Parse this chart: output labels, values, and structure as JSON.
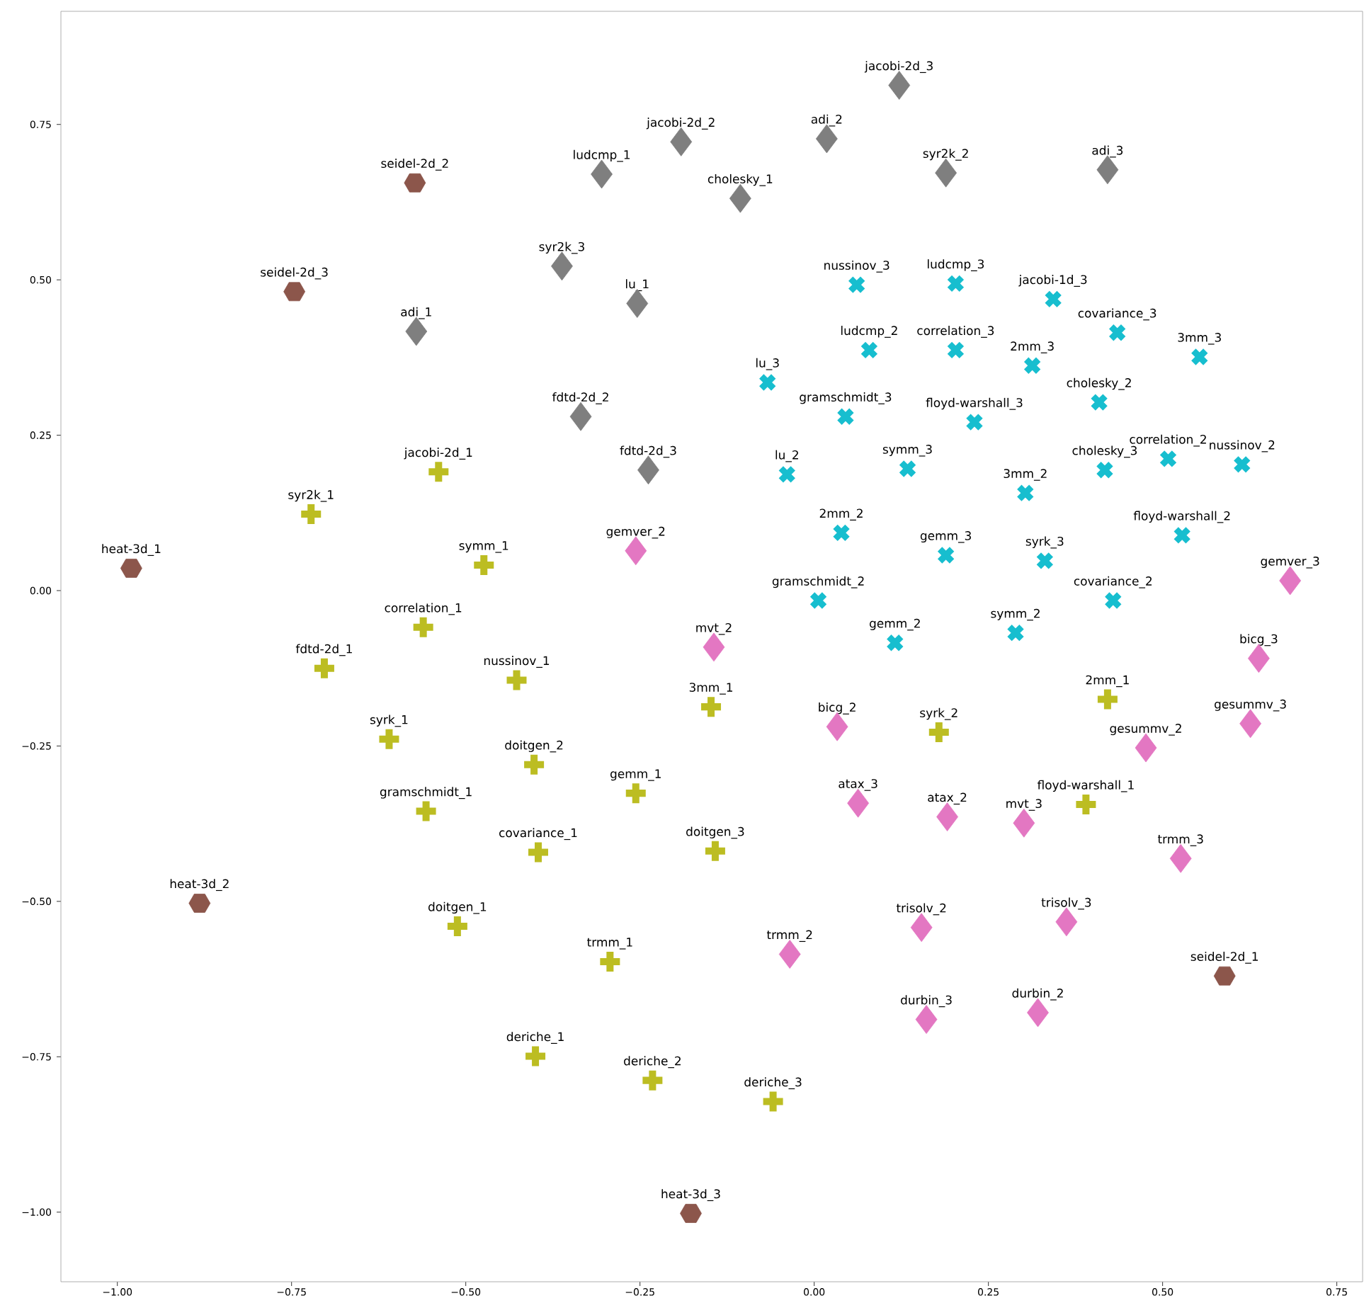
{
  "chart_data": {
    "type": "scatter",
    "xlim": [
      -1.081,
      0.787
    ],
    "ylim": [
      -1.112,
      0.932
    ],
    "xticks": [
      {
        "value": -1.0,
        "label": "−1.00"
      },
      {
        "value": -0.75,
        "label": "−0.75"
      },
      {
        "value": -0.5,
        "label": "−0.50"
      },
      {
        "value": -0.25,
        "label": "−0.25"
      },
      {
        "value": 0.0,
        "label": "0.00"
      },
      {
        "value": 0.25,
        "label": "0.25"
      },
      {
        "value": 0.5,
        "label": "0.50"
      },
      {
        "value": 0.75,
        "label": "0.75"
      }
    ],
    "yticks": [
      {
        "value": -1.0,
        "label": "−1.00"
      },
      {
        "value": -0.75,
        "label": "−0.75"
      },
      {
        "value": -0.5,
        "label": "−0.50"
      },
      {
        "value": -0.25,
        "label": "−0.25"
      },
      {
        "value": 0.0,
        "label": "0.00"
      },
      {
        "value": 0.25,
        "label": "0.25"
      },
      {
        "value": 0.5,
        "label": "0.50"
      },
      {
        "value": 0.75,
        "label": "0.75"
      }
    ],
    "series": [
      {
        "color": "#7f7f7f",
        "marker": "diamond",
        "x": [
          0.122,
          -0.191,
          0.018,
          -0.305,
          0.189,
          0.421,
          -0.106,
          -0.362,
          -0.254,
          -0.571,
          -0.335,
          -0.238
        ],
        "values": [
          0.813,
          0.722,
          0.727,
          0.67,
          0.672,
          0.677,
          0.631,
          0.522,
          0.462,
          0.417,
          0.28,
          0.194
        ]
      },
      {
        "color": "#17becf",
        "marker": "cross",
        "x": [
          0.061,
          0.203,
          0.343,
          0.435,
          0.079,
          0.203,
          0.313,
          0.553,
          -0.067,
          0.409,
          0.045,
          0.23,
          0.508,
          0.614,
          0.134,
          -0.039,
          0.417,
          0.303,
          0.528,
          0.039,
          0.189,
          0.331,
          0.429,
          0.006,
          0.116,
          0.289
        ],
        "values": [
          0.492,
          0.494,
          0.469,
          0.415,
          0.387,
          0.387,
          0.362,
          0.376,
          0.335,
          0.303,
          0.28,
          0.271,
          0.212,
          0.203,
          0.196,
          0.187,
          0.194,
          0.157,
          0.089,
          0.093,
          0.057,
          0.048,
          -0.016,
          -0.016,
          -0.084,
          -0.068
        ]
      },
      {
        "color": "#bcbd22",
        "marker": "plus",
        "x": [
          -0.539,
          -0.722,
          -0.474,
          -0.561,
          -0.703,
          -0.427,
          -0.148,
          -0.61,
          -0.402,
          -0.256,
          -0.557,
          -0.396,
          -0.142,
          -0.512,
          -0.293,
          -0.4,
          -0.232,
          -0.059,
          0.421,
          0.179,
          0.39
        ],
        "values": [
          0.191,
          0.123,
          0.041,
          -0.059,
          -0.125,
          -0.144,
          -0.187,
          -0.239,
          -0.28,
          -0.326,
          -0.355,
          -0.421,
          -0.419,
          -0.54,
          -0.597,
          -0.749,
          -0.788,
          -0.822,
          -0.175,
          -0.228,
          -0.344
        ]
      },
      {
        "color": "#e377c2",
        "marker": "diamond",
        "x": [
          -0.256,
          -0.144,
          0.683,
          0.638,
          0.033,
          0.626,
          0.476,
          0.063,
          0.191,
          0.301,
          0.526,
          0.154,
          0.362,
          -0.035,
          0.161,
          0.321
        ],
        "values": [
          0.064,
          -0.091,
          0.016,
          -0.109,
          -0.219,
          -0.214,
          -0.253,
          -0.342,
          -0.364,
          -0.374,
          -0.431,
          -0.542,
          -0.533,
          -0.585,
          -0.69,
          -0.679
        ]
      },
      {
        "color": "#8c564b",
        "x": [
          -0.573,
          -0.746,
          -0.98,
          -0.882,
          -0.177,
          0.589
        ],
        "values": [
          0.656,
          0.481,
          0.036,
          -0.503,
          -1.002,
          -0.62
        ]
      }
    ],
    "annotations": [
      {
        "text": "jacobi-2d_3",
        "x": 0.122,
        "y": 0.813
      },
      {
        "text": "jacobi-2d_2",
        "x": -0.191,
        "y": 0.722
      },
      {
        "text": "adi_2",
        "x": 0.018,
        "y": 0.727
      },
      {
        "text": "ludcmp_1",
        "x": -0.305,
        "y": 0.67
      },
      {
        "text": "syr2k_2",
        "x": 0.189,
        "y": 0.672
      },
      {
        "text": "adi_3",
        "x": 0.421,
        "y": 0.677
      },
      {
        "text": "cholesky_1",
        "x": -0.106,
        "y": 0.631
      },
      {
        "text": "syr2k_3",
        "x": -0.362,
        "y": 0.522
      },
      {
        "text": "lu_1",
        "x": -0.254,
        "y": 0.462
      },
      {
        "text": "adi_1",
        "x": -0.571,
        "y": 0.417
      },
      {
        "text": "fdtd-2d_2",
        "x": -0.335,
        "y": 0.28
      },
      {
        "text": "fdtd-2d_3",
        "x": -0.238,
        "y": 0.194
      },
      {
        "text": "nussinov_3",
        "x": 0.061,
        "y": 0.492
      },
      {
        "text": "ludcmp_3",
        "x": 0.203,
        "y": 0.494
      },
      {
        "text": "jacobi-1d_3",
        "x": 0.343,
        "y": 0.469
      },
      {
        "text": "covariance_3",
        "x": 0.435,
        "y": 0.415
      },
      {
        "text": "ludcmp_2",
        "x": 0.079,
        "y": 0.387
      },
      {
        "text": "correlation_3",
        "x": 0.203,
        "y": 0.387
      },
      {
        "text": "2mm_3",
        "x": 0.313,
        "y": 0.362
      },
      {
        "text": "3mm_3",
        "x": 0.553,
        "y": 0.376
      },
      {
        "text": "lu_3",
        "x": -0.067,
        "y": 0.335
      },
      {
        "text": "cholesky_2",
        "x": 0.409,
        "y": 0.303
      },
      {
        "text": "gramschmidt_3",
        "x": 0.045,
        "y": 0.28
      },
      {
        "text": "floyd-warshall_3",
        "x": 0.23,
        "y": 0.271
      },
      {
        "text": "correlation_2",
        "x": 0.508,
        "y": 0.212
      },
      {
        "text": "nussinov_2",
        "x": 0.614,
        "y": 0.203
      },
      {
        "text": "symm_3",
        "x": 0.134,
        "y": 0.196
      },
      {
        "text": "lu_2",
        "x": -0.039,
        "y": 0.187
      },
      {
        "text": "cholesky_3",
        "x": 0.417,
        "y": 0.194
      },
      {
        "text": "3mm_2",
        "x": 0.303,
        "y": 0.157
      },
      {
        "text": "floyd-warshall_2",
        "x": 0.528,
        "y": 0.089
      },
      {
        "text": "2mm_2",
        "x": 0.039,
        "y": 0.093
      },
      {
        "text": "gemm_3",
        "x": 0.189,
        "y": 0.057
      },
      {
        "text": "syrk_3",
        "x": 0.331,
        "y": 0.048
      },
      {
        "text": "covariance_2",
        "x": 0.429,
        "y": -0.016
      },
      {
        "text": "gramschmidt_2",
        "x": 0.006,
        "y": -0.016
      },
      {
        "text": "gemm_2",
        "x": 0.116,
        "y": -0.084
      },
      {
        "text": "symm_2",
        "x": 0.289,
        "y": -0.068
      },
      {
        "text": "jacobi-2d_1",
        "x": -0.539,
        "y": 0.191
      },
      {
        "text": "syr2k_1",
        "x": -0.722,
        "y": 0.123
      },
      {
        "text": "symm_1",
        "x": -0.474,
        "y": 0.041
      },
      {
        "text": "correlation_1",
        "x": -0.561,
        "y": -0.059
      },
      {
        "text": "fdtd-2d_1",
        "x": -0.703,
        "y": -0.125
      },
      {
        "text": "nussinov_1",
        "x": -0.427,
        "y": -0.144
      },
      {
        "text": "3mm_1",
        "x": -0.148,
        "y": -0.187
      },
      {
        "text": "syrk_1",
        "x": -0.61,
        "y": -0.239
      },
      {
        "text": "doitgen_2",
        "x": -0.402,
        "y": -0.28
      },
      {
        "text": "gemm_1",
        "x": -0.256,
        "y": -0.326
      },
      {
        "text": "gramschmidt_1",
        "x": -0.557,
        "y": -0.355
      },
      {
        "text": "covariance_1",
        "x": -0.396,
        "y": -0.421
      },
      {
        "text": "doitgen_3",
        "x": -0.142,
        "y": -0.419
      },
      {
        "text": "doitgen_1",
        "x": -0.512,
        "y": -0.54
      },
      {
        "text": "trmm_1",
        "x": -0.293,
        "y": -0.597
      },
      {
        "text": "deriche_1",
        "x": -0.4,
        "y": -0.749
      },
      {
        "text": "deriche_2",
        "x": -0.232,
        "y": -0.788
      },
      {
        "text": "deriche_3",
        "x": -0.059,
        "y": -0.822
      },
      {
        "text": "2mm_1",
        "x": 0.421,
        "y": -0.175
      },
      {
        "text": "syrk_2",
        "x": 0.179,
        "y": -0.228
      },
      {
        "text": "floyd-warshall_1",
        "x": 0.39,
        "y": -0.344
      },
      {
        "text": "gemver_2",
        "x": -0.256,
        "y": 0.064
      },
      {
        "text": "mvt_2",
        "x": -0.144,
        "y": -0.091
      },
      {
        "text": "gemver_3",
        "x": 0.683,
        "y": 0.016
      },
      {
        "text": "bicg_3",
        "x": 0.638,
        "y": -0.109
      },
      {
        "text": "bicg_2",
        "x": 0.033,
        "y": -0.219
      },
      {
        "text": "gesummv_3",
        "x": 0.626,
        "y": -0.214
      },
      {
        "text": "gesummv_2",
        "x": 0.476,
        "y": -0.253
      },
      {
        "text": "atax_3",
        "x": 0.063,
        "y": -0.342
      },
      {
        "text": "atax_2",
        "x": 0.191,
        "y": -0.364
      },
      {
        "text": "mvt_3",
        "x": 0.301,
        "y": -0.374
      },
      {
        "text": "trmm_3",
        "x": 0.526,
        "y": -0.431
      },
      {
        "text": "trisolv_2",
        "x": 0.154,
        "y": -0.542
      },
      {
        "text": "trisolv_3",
        "x": 0.362,
        "y": -0.533
      },
      {
        "text": "trmm_2",
        "x": -0.035,
        "y": -0.585
      },
      {
        "text": "durbin_3",
        "x": 0.161,
        "y": -0.69
      },
      {
        "text": "durbin_2",
        "x": 0.321,
        "y": -0.679
      },
      {
        "text": "seidel-2d_2",
        "x": -0.573,
        "y": 0.656
      },
      {
        "text": "seidel-2d_3",
        "x": -0.746,
        "y": 0.481
      },
      {
        "text": "heat-3d_1",
        "x": -0.98,
        "y": 0.036
      },
      {
        "text": "heat-3d_2",
        "x": -0.882,
        "y": -0.503
      },
      {
        "text": "heat-3d_3",
        "x": -0.177,
        "y": -1.002
      },
      {
        "text": "seidel-2d_1",
        "x": 0.589,
        "y": -0.62
      }
    ]
  }
}
